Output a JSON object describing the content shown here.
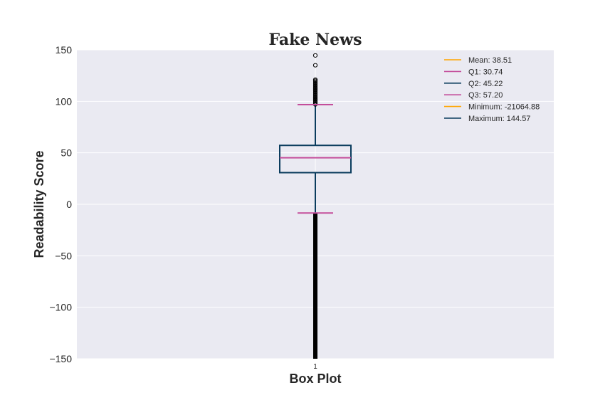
{
  "chart_data": {
    "type": "box",
    "title": "Fake News",
    "xlabel": "Box Plot",
    "ylabel": "Readability Score",
    "categories": [
      "1"
    ],
    "ylim": [
      -150,
      150
    ],
    "yticks": [
      150,
      100,
      50,
      0,
      -50,
      -100,
      -150
    ],
    "ytick_labels": [
      "150",
      "100",
      "50",
      "0",
      "−50",
      "−100",
      "−150"
    ],
    "grid": true,
    "legend_position": "top-right",
    "box": {
      "q1": 30.74,
      "median": 45.22,
      "q3": 57.2,
      "whisker_low": -8.5,
      "whisker_high": 96.8
    },
    "outliers_high": [
      97,
      98,
      99,
      100,
      101,
      102,
      103,
      104,
      105,
      106,
      107,
      108,
      109,
      110,
      111,
      112,
      113,
      114,
      115,
      116,
      117,
      118,
      119,
      120,
      121,
      135,
      144.57
    ],
    "outliers_low_range": [
      -150,
      -8.5
    ],
    "legend": [
      {
        "label": "Mean: 38.51",
        "color": "#ffa500"
      },
      {
        "label": "Q1: 30.74",
        "color": "#c44e9b"
      },
      {
        "label": "Q2: 45.22",
        "color": "#0b3d5e"
      },
      {
        "label": "Q3: 57.20",
        "color": "#c44e9b"
      },
      {
        "label": "Minimum: -21064.88",
        "color": "#ffa500"
      },
      {
        "label": "Maximum: 144.57",
        "color": "#0b3d5e"
      }
    ],
    "colors": {
      "box": "#0b3d5e",
      "median": "#c44e9b",
      "caps": "#c44e9b",
      "background": "#eaeaf2",
      "grid": "#ffffff",
      "outlier": "#000000"
    }
  }
}
